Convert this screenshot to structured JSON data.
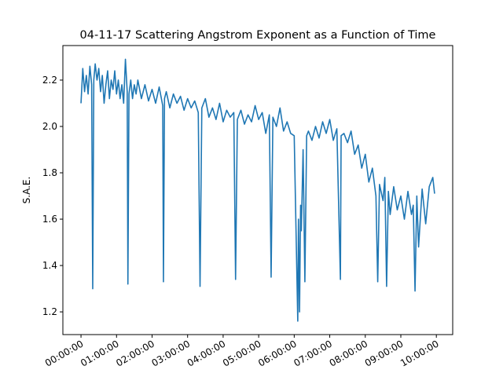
{
  "chart_data": {
    "type": "line",
    "title": "04-11-17 Scattering Angstrom Exponent as a Function of Time",
    "ylabel": "S.A.E.",
    "x": [
      0.0,
      0.05,
      0.1,
      0.15,
      0.2,
      0.25,
      0.3,
      0.33,
      0.36,
      0.4,
      0.45,
      0.5,
      0.55,
      0.6,
      0.65,
      0.7,
      0.75,
      0.8,
      0.85,
      0.9,
      0.95,
      1.0,
      1.05,
      1.1,
      1.15,
      1.2,
      1.25,
      1.3,
      1.32,
      1.35,
      1.4,
      1.45,
      1.5,
      1.55,
      1.6,
      1.7,
      1.8,
      1.9,
      2.0,
      2.1,
      2.2,
      2.3,
      2.32,
      2.35,
      2.4,
      2.5,
      2.6,
      2.7,
      2.8,
      2.9,
      3.0,
      3.1,
      3.2,
      3.3,
      3.35,
      3.4,
      3.5,
      3.6,
      3.7,
      3.8,
      3.9,
      4.0,
      4.1,
      4.2,
      4.3,
      4.35,
      4.4,
      4.5,
      4.6,
      4.7,
      4.8,
      4.9,
      5.0,
      5.1,
      5.2,
      5.3,
      5.35,
      5.4,
      5.5,
      5.6,
      5.7,
      5.8,
      5.9,
      6.0,
      6.1,
      6.12,
      6.15,
      6.18,
      6.2,
      6.25,
      6.3,
      6.35,
      6.4,
      6.5,
      6.6,
      6.7,
      6.8,
      6.9,
      7.0,
      7.1,
      7.2,
      7.3,
      7.32,
      7.4,
      7.5,
      7.6,
      7.7,
      7.8,
      7.9,
      8.0,
      8.1,
      8.2,
      8.3,
      8.35,
      8.4,
      8.5,
      8.55,
      8.6,
      8.65,
      8.7,
      8.8,
      8.9,
      9.0,
      9.1,
      9.2,
      9.3,
      9.35,
      9.4,
      9.45,
      9.5,
      9.6,
      9.7,
      9.8,
      9.9,
      9.95
    ],
    "series": [
      {
        "name": "S.A.E.",
        "color": "#1f77b4",
        "values": [
          2.1,
          2.25,
          2.15,
          2.22,
          2.14,
          2.26,
          2.18,
          1.3,
          2.2,
          2.27,
          2.2,
          2.25,
          2.15,
          2.22,
          2.1,
          2.18,
          2.24,
          2.12,
          2.2,
          2.16,
          2.24,
          2.14,
          2.2,
          2.12,
          2.18,
          2.1,
          2.29,
          2.15,
          1.32,
          2.14,
          2.2,
          2.12,
          2.18,
          2.14,
          2.2,
          2.12,
          2.18,
          2.11,
          2.16,
          2.1,
          2.17,
          2.09,
          1.33,
          2.12,
          2.15,
          2.08,
          2.14,
          2.1,
          2.13,
          2.07,
          2.12,
          2.08,
          2.11,
          2.06,
          1.31,
          2.08,
          2.12,
          2.04,
          2.08,
          2.03,
          2.1,
          2.02,
          2.07,
          2.04,
          2.06,
          1.34,
          2.03,
          2.07,
          2.01,
          2.05,
          2.02,
          2.09,
          2.03,
          2.06,
          1.97,
          2.05,
          1.35,
          2.04,
          2.0,
          2.08,
          1.98,
          2.02,
          1.97,
          1.96,
          1.16,
          1.6,
          1.2,
          1.66,
          1.55,
          1.9,
          1.33,
          1.96,
          1.98,
          1.94,
          2.0,
          1.95,
          2.02,
          1.97,
          2.03,
          1.94,
          1.99,
          1.34,
          1.96,
          1.97,
          1.93,
          1.98,
          1.88,
          1.92,
          1.82,
          1.88,
          1.76,
          1.82,
          1.7,
          1.33,
          1.75,
          1.68,
          1.78,
          1.31,
          1.72,
          1.62,
          1.74,
          1.64,
          1.7,
          1.6,
          1.72,
          1.62,
          1.66,
          1.29,
          1.7,
          1.48,
          1.73,
          1.58,
          1.74,
          1.78,
          1.71
        ]
      }
    ],
    "xlim": [
      -0.51,
      10.46
    ],
    "xticks": [
      {
        "value": 0,
        "label": "00:00:00"
      },
      {
        "value": 1,
        "label": "01:00:00"
      },
      {
        "value": 2,
        "label": "02:00:00"
      },
      {
        "value": 3,
        "label": "03:00:00"
      },
      {
        "value": 4,
        "label": "04:00:00"
      },
      {
        "value": 5,
        "label": "05:00:00"
      },
      {
        "value": 6,
        "label": "06:00:00"
      },
      {
        "value": 7,
        "label": "07:00:00"
      },
      {
        "value": 8,
        "label": "08:00:00"
      },
      {
        "value": 9,
        "label": "09:00:00"
      },
      {
        "value": 10,
        "label": "10:00:00"
      }
    ],
    "ylim": [
      1.102,
      2.349
    ],
    "yticks": [
      1.2,
      1.4,
      1.6,
      1.8,
      {
        "value": 2,
        "label": "2.0"
      },
      2.2
    ],
    "grid": false
  }
}
